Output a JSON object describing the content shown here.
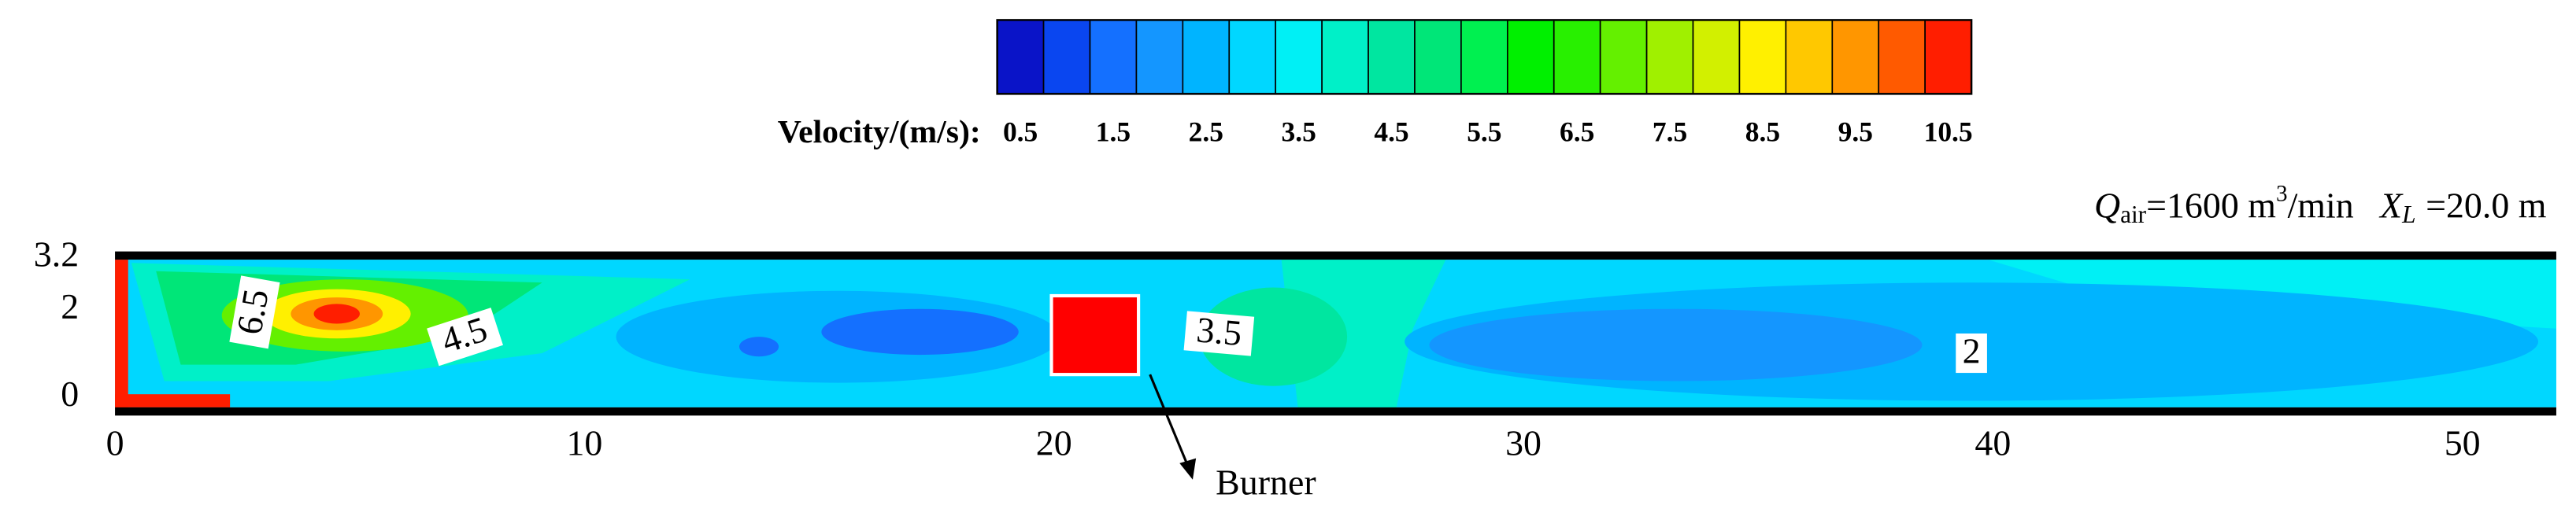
{
  "chart_data": {
    "type": "contour",
    "colorbar": {
      "label": "Velocity/(m/s):",
      "clim": [
        0.25,
        10.75
      ],
      "ticks": [
        0.5,
        1.5,
        2.5,
        3.5,
        4.5,
        5.5,
        6.5,
        7.5,
        8.5,
        9.5,
        10.5
      ],
      "colors": [
        "#0a14c8",
        "#0a46f0",
        "#1470ff",
        "#1496ff",
        "#00b4ff",
        "#00d7ff",
        "#00f0f5",
        "#00f0c8",
        "#00e6a0",
        "#00e678",
        "#00f050",
        "#00f000",
        "#28f000",
        "#64f000",
        "#a0f000",
        "#d2f000",
        "#fff000",
        "#ffc800",
        "#ff9600",
        "#ff5a00",
        "#ff1e00"
      ]
    },
    "annotation": {
      "q_symbol": "Q",
      "q_sub": "air",
      "q_value": "=1600 m",
      "q_sup": "3",
      "q_unit": "/min",
      "x_symbol": "X",
      "x_sub": "L",
      "x_value": "=20.0 m"
    },
    "xlim": [
      0,
      52
    ],
    "xticks": [
      0,
      10,
      20,
      30,
      40,
      50
    ],
    "ylim": [
      0,
      3.2
    ],
    "yticks": [
      0,
      2,
      3.2
    ],
    "contour_labels": [
      "6.5",
      "4.5",
      "3.5",
      "2"
    ],
    "burner_label": "Burner"
  }
}
